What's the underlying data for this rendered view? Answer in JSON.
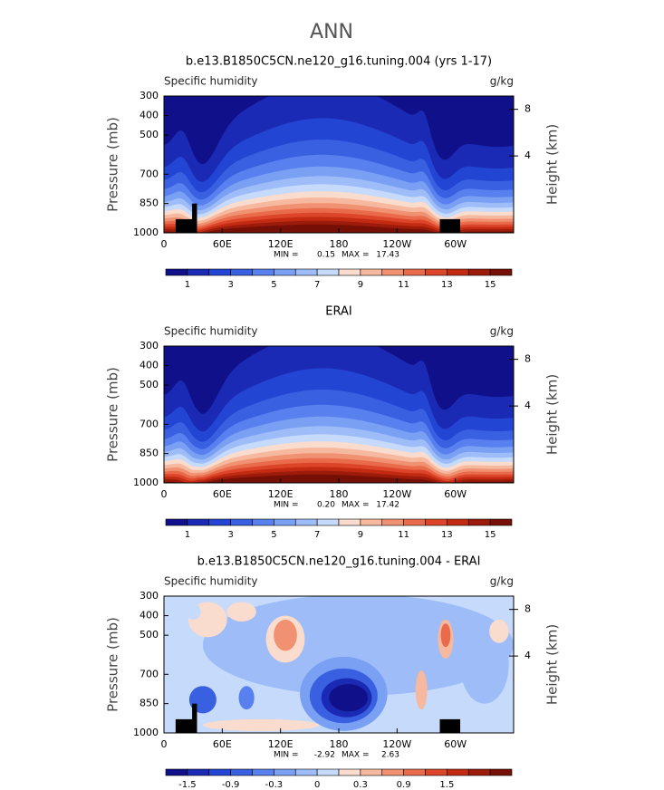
{
  "title": "ANN",
  "chart_data": [
    {
      "type": "contour",
      "title": "b.e13.B1850C5CN.ne120_g16.tuning.004 (yrs 1-17)",
      "subtitle_left": "Specific humidity",
      "subtitle_right": "g/kg",
      "ylabel": "Pressure (mb)",
      "y2label": "Height (km)",
      "xlim": [
        0,
        360
      ],
      "xticks": [
        0,
        {
          "value": 60,
          "label": "60E"
        },
        {
          "value": 120,
          "label": "120E"
        },
        180,
        {
          "value": 240,
          "label": "120W"
        },
        {
          "value": 300,
          "label": "60W"
        }
      ],
      "ylim": [
        1000,
        300
      ],
      "yticks": [
        300,
        400,
        500,
        700,
        850,
        1000
      ],
      "y2ticks": [
        4,
        8
      ],
      "min_label": "MIN =",
      "min": "0.15",
      "max_label": "MAX =",
      "max": "17.43",
      "colorbar_colors": [
        "#10108a",
        "#1a2ab4",
        "#2345d3",
        "#3a60e2",
        "#5880ee",
        "#7aa0f4",
        "#9ebdf8",
        "#c6dafb",
        "#f9dccd",
        "#f6b89e",
        "#f09272",
        "#e96b4b",
        "#dc4529",
        "#c22b12",
        "#9c1b0a",
        "#761007"
      ],
      "colorbar_ticks": [
        1,
        3,
        5,
        7,
        9,
        11,
        13,
        15
      ]
    },
    {
      "type": "contour",
      "title": "ERAI",
      "subtitle_left": "Specific humidity",
      "subtitle_right": "g/kg",
      "ylabel": "Pressure (mb)",
      "y2label": "Height (km)",
      "xlim": [
        0,
        360
      ],
      "xticks": [
        0,
        {
          "value": 60,
          "label": "60E"
        },
        {
          "value": 120,
          "label": "120E"
        },
        180,
        {
          "value": 240,
          "label": "120W"
        },
        {
          "value": 300,
          "label": "60W"
        }
      ],
      "ylim": [
        1000,
        300
      ],
      "yticks": [
        300,
        400,
        500,
        700,
        850,
        1000
      ],
      "y2ticks": [
        4,
        8
      ],
      "min_label": "MIN =",
      "min": "0.20",
      "max_label": "MAX =",
      "max": "17.42",
      "colorbar_colors": [
        "#10108a",
        "#1a2ab4",
        "#2345d3",
        "#3a60e2",
        "#5880ee",
        "#7aa0f4",
        "#9ebdf8",
        "#c6dafb",
        "#f9dccd",
        "#f6b89e",
        "#f09272",
        "#e96b4b",
        "#dc4529",
        "#c22b12",
        "#9c1b0a",
        "#761007"
      ],
      "colorbar_ticks": [
        1,
        3,
        5,
        7,
        9,
        11,
        13,
        15
      ]
    },
    {
      "type": "difference",
      "title": "b.e13.B1850C5CN.ne120_g16.tuning.004 - ERAI",
      "subtitle_left": "Specific humidity",
      "subtitle_right": "g/kg",
      "ylabel": "Pressure (mb)",
      "y2label": "Height (km)",
      "xlim": [
        0,
        360
      ],
      "xticks": [
        0,
        {
          "value": 60,
          "label": "60E"
        },
        {
          "value": 120,
          "label": "120E"
        },
        180,
        {
          "value": 240,
          "label": "120W"
        },
        {
          "value": 300,
          "label": "60W"
        }
      ],
      "ylim": [
        1000,
        300
      ],
      "yticks": [
        300,
        400,
        500,
        700,
        850,
        1000
      ],
      "y2ticks": [
        4,
        8
      ],
      "min_label": "MIN =",
      "min": "-2.92",
      "max_label": "MAX =",
      "max": "2.63",
      "colorbar_colors": [
        "#10108a",
        "#1a2ab4",
        "#2345d3",
        "#3a60e2",
        "#5880ee",
        "#7aa0f4",
        "#9ebdf8",
        "#c6dafb",
        "#f9dccd",
        "#f6b89e",
        "#f09272",
        "#e96b4b",
        "#dc4529",
        "#c22b12",
        "#9c1b0a",
        "#761007"
      ],
      "colorbar_ticks": [
        -1.5,
        -0.9,
        -0.3,
        0,
        0.3,
        0.9,
        1.5
      ]
    }
  ]
}
